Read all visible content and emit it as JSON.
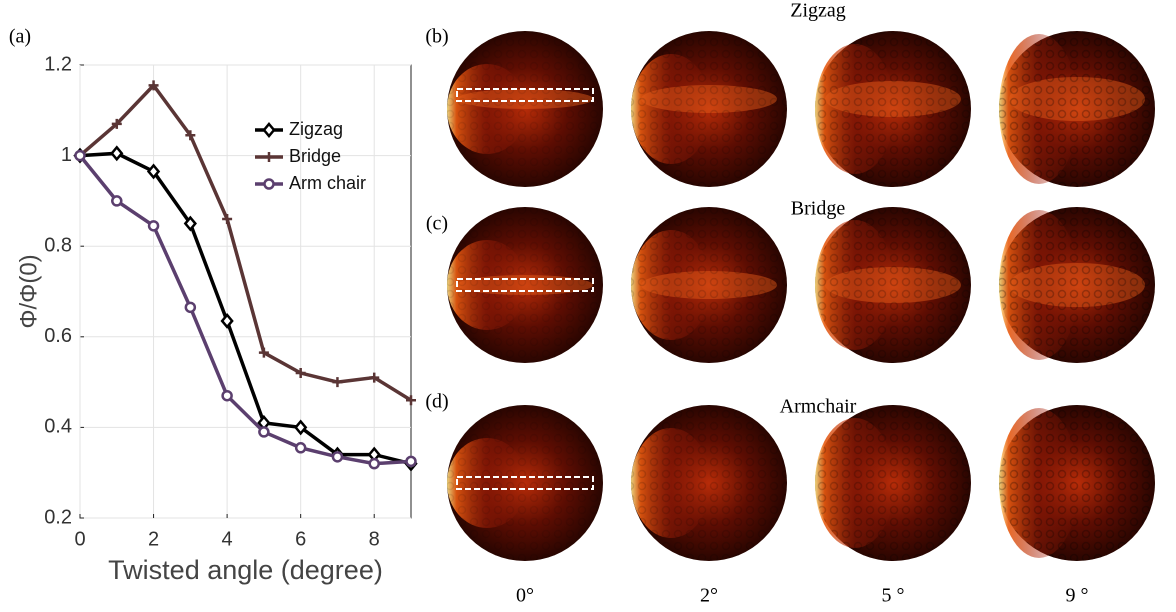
{
  "chart_data": {
    "type": "line",
    "xlabel": "Twisted angle (degree)",
    "ylabel": "Φ/Φ(0)",
    "x": [
      0,
      1,
      2,
      3,
      4,
      5,
      6,
      7,
      8,
      9
    ],
    "series": [
      {
        "name": "Zigzag",
        "color": "#000000",
        "marker": "diamond",
        "values": [
          1,
          1.005,
          0.965,
          0.85,
          0.635,
          0.41,
          0.4,
          0.34,
          0.34,
          0.32
        ]
      },
      {
        "name": "Bridge",
        "color": "#5a3535",
        "marker": "plus",
        "values": [
          1,
          1.07,
          1.155,
          1.045,
          0.86,
          0.565,
          0.52,
          0.5,
          0.51,
          0.46
        ]
      },
      {
        "name": "Arm chair",
        "color": "#5b3f6e",
        "marker": "circle",
        "values": [
          1,
          0.9,
          0.845,
          0.665,
          0.47,
          0.39,
          0.355,
          0.335,
          0.32,
          0.325
        ]
      }
    ],
    "xlim": [
      0,
      9
    ],
    "xticks": [
      0,
      2,
      4,
      6,
      8
    ],
    "ylim": [
      0.2,
      1.2
    ],
    "yticks": [
      0.2,
      0.4,
      0.6,
      0.8,
      1,
      1.2
    ],
    "grid": true,
    "legend": "upper right"
  },
  "panel_labels": [
    "(a)",
    "(b)",
    "(c)",
    "(d)"
  ],
  "row_titles": [
    "Zigzag",
    "Bridge",
    "Armchair"
  ],
  "column_labels": [
    "0°",
    "2°",
    "5 °",
    "9 °"
  ]
}
